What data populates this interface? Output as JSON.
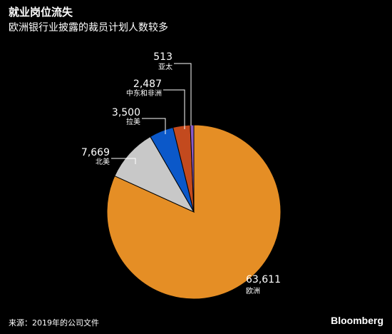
{
  "header": {
    "title": "就业岗位流失",
    "subtitle": "欧洲银行业披露的裁员计划人数较多"
  },
  "footer": {
    "source": "来源：2019年的公司文件",
    "brand": "Bloomberg"
  },
  "chart_data": {
    "type": "pie",
    "title": "就业岗位流失",
    "subtitle": "欧洲银行业披露的裁员计划人数较多",
    "slices": [
      {
        "label": "欧洲",
        "value": 63611,
        "display": "63,611",
        "color": "#E58E25"
      },
      {
        "label": "北美",
        "value": 7669,
        "display": "7,669",
        "color": "#C8C8C8"
      },
      {
        "label": "拉美",
        "value": 3500,
        "display": "3,500",
        "color": "#0B58C9"
      },
      {
        "label": "中东和非洲",
        "value": 2487,
        "display": "2,487",
        "color": "#C34A1E"
      },
      {
        "label": "亚太",
        "value": 513,
        "display": "513",
        "color": "#8A5BC8"
      }
    ]
  }
}
